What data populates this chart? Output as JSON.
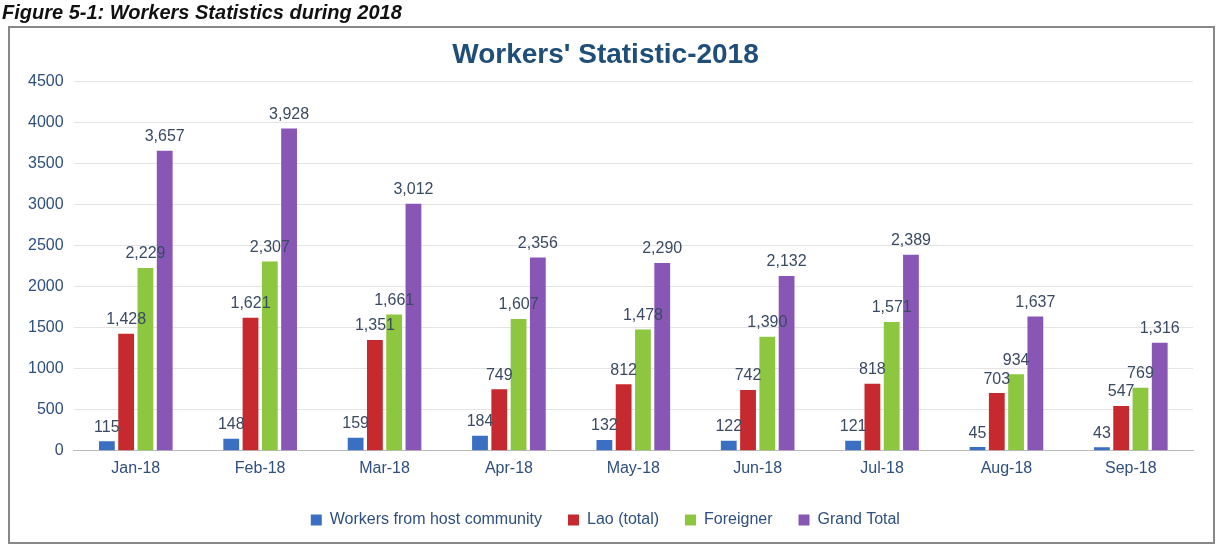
{
  "chart_data": {
    "type": "bar",
    "title": "Workers' Statistic-2018",
    "annotations": [
      "Figure 5-1: Workers Statistics during 2018"
    ],
    "categories": [
      "Jan-18",
      "Feb-18",
      "Mar-18",
      "Apr-18",
      "May-18",
      "Jun-18",
      "Jul-18",
      "Aug-18",
      "Sep-18"
    ],
    "series": [
      {
        "name": "Workers from host community",
        "color": "#3b6fc2",
        "values": [
          115,
          148,
          159,
          184,
          132,
          122,
          121,
          45,
          43
        ],
        "value_labels": [
          "115",
          "148",
          "159",
          "184",
          "132",
          "122",
          "121",
          "45",
          "43"
        ]
      },
      {
        "name": "Lao (total)",
        "color": "#c62a2e",
        "values": [
          1428,
          1621,
          1351,
          749,
          812,
          742,
          818,
          703,
          547
        ],
        "value_labels": [
          "1,428",
          "1,621",
          "1,351",
          "749",
          "812",
          "742",
          "818",
          "703",
          "547"
        ]
      },
      {
        "name": "Foreigner",
        "color": "#8dc63f",
        "values": [
          2229,
          2307,
          1661,
          1607,
          1478,
          1390,
          1571,
          934,
          769
        ],
        "value_labels": [
          "2,229",
          "2,307",
          "1,661",
          "1,607",
          "1,478",
          "1,390",
          "1,571",
          "934",
          "769"
        ]
      },
      {
        "name": "Grand Total",
        "color": "#8856b4",
        "values": [
          3657,
          3928,
          3012,
          2356,
          2290,
          2132,
          2389,
          1637,
          1316
        ],
        "value_labels": [
          "3,657",
          "3,928",
          "3,012",
          "2,356",
          "2,290",
          "2,132",
          "2,389",
          "1,637",
          "1,316"
        ]
      }
    ],
    "ylim": [
      0,
      4500
    ],
    "yticks": [
      0,
      500,
      1000,
      1500,
      2000,
      2500,
      3000,
      3500,
      4000,
      4500
    ],
    "grid": "y",
    "legend": "bottom"
  }
}
